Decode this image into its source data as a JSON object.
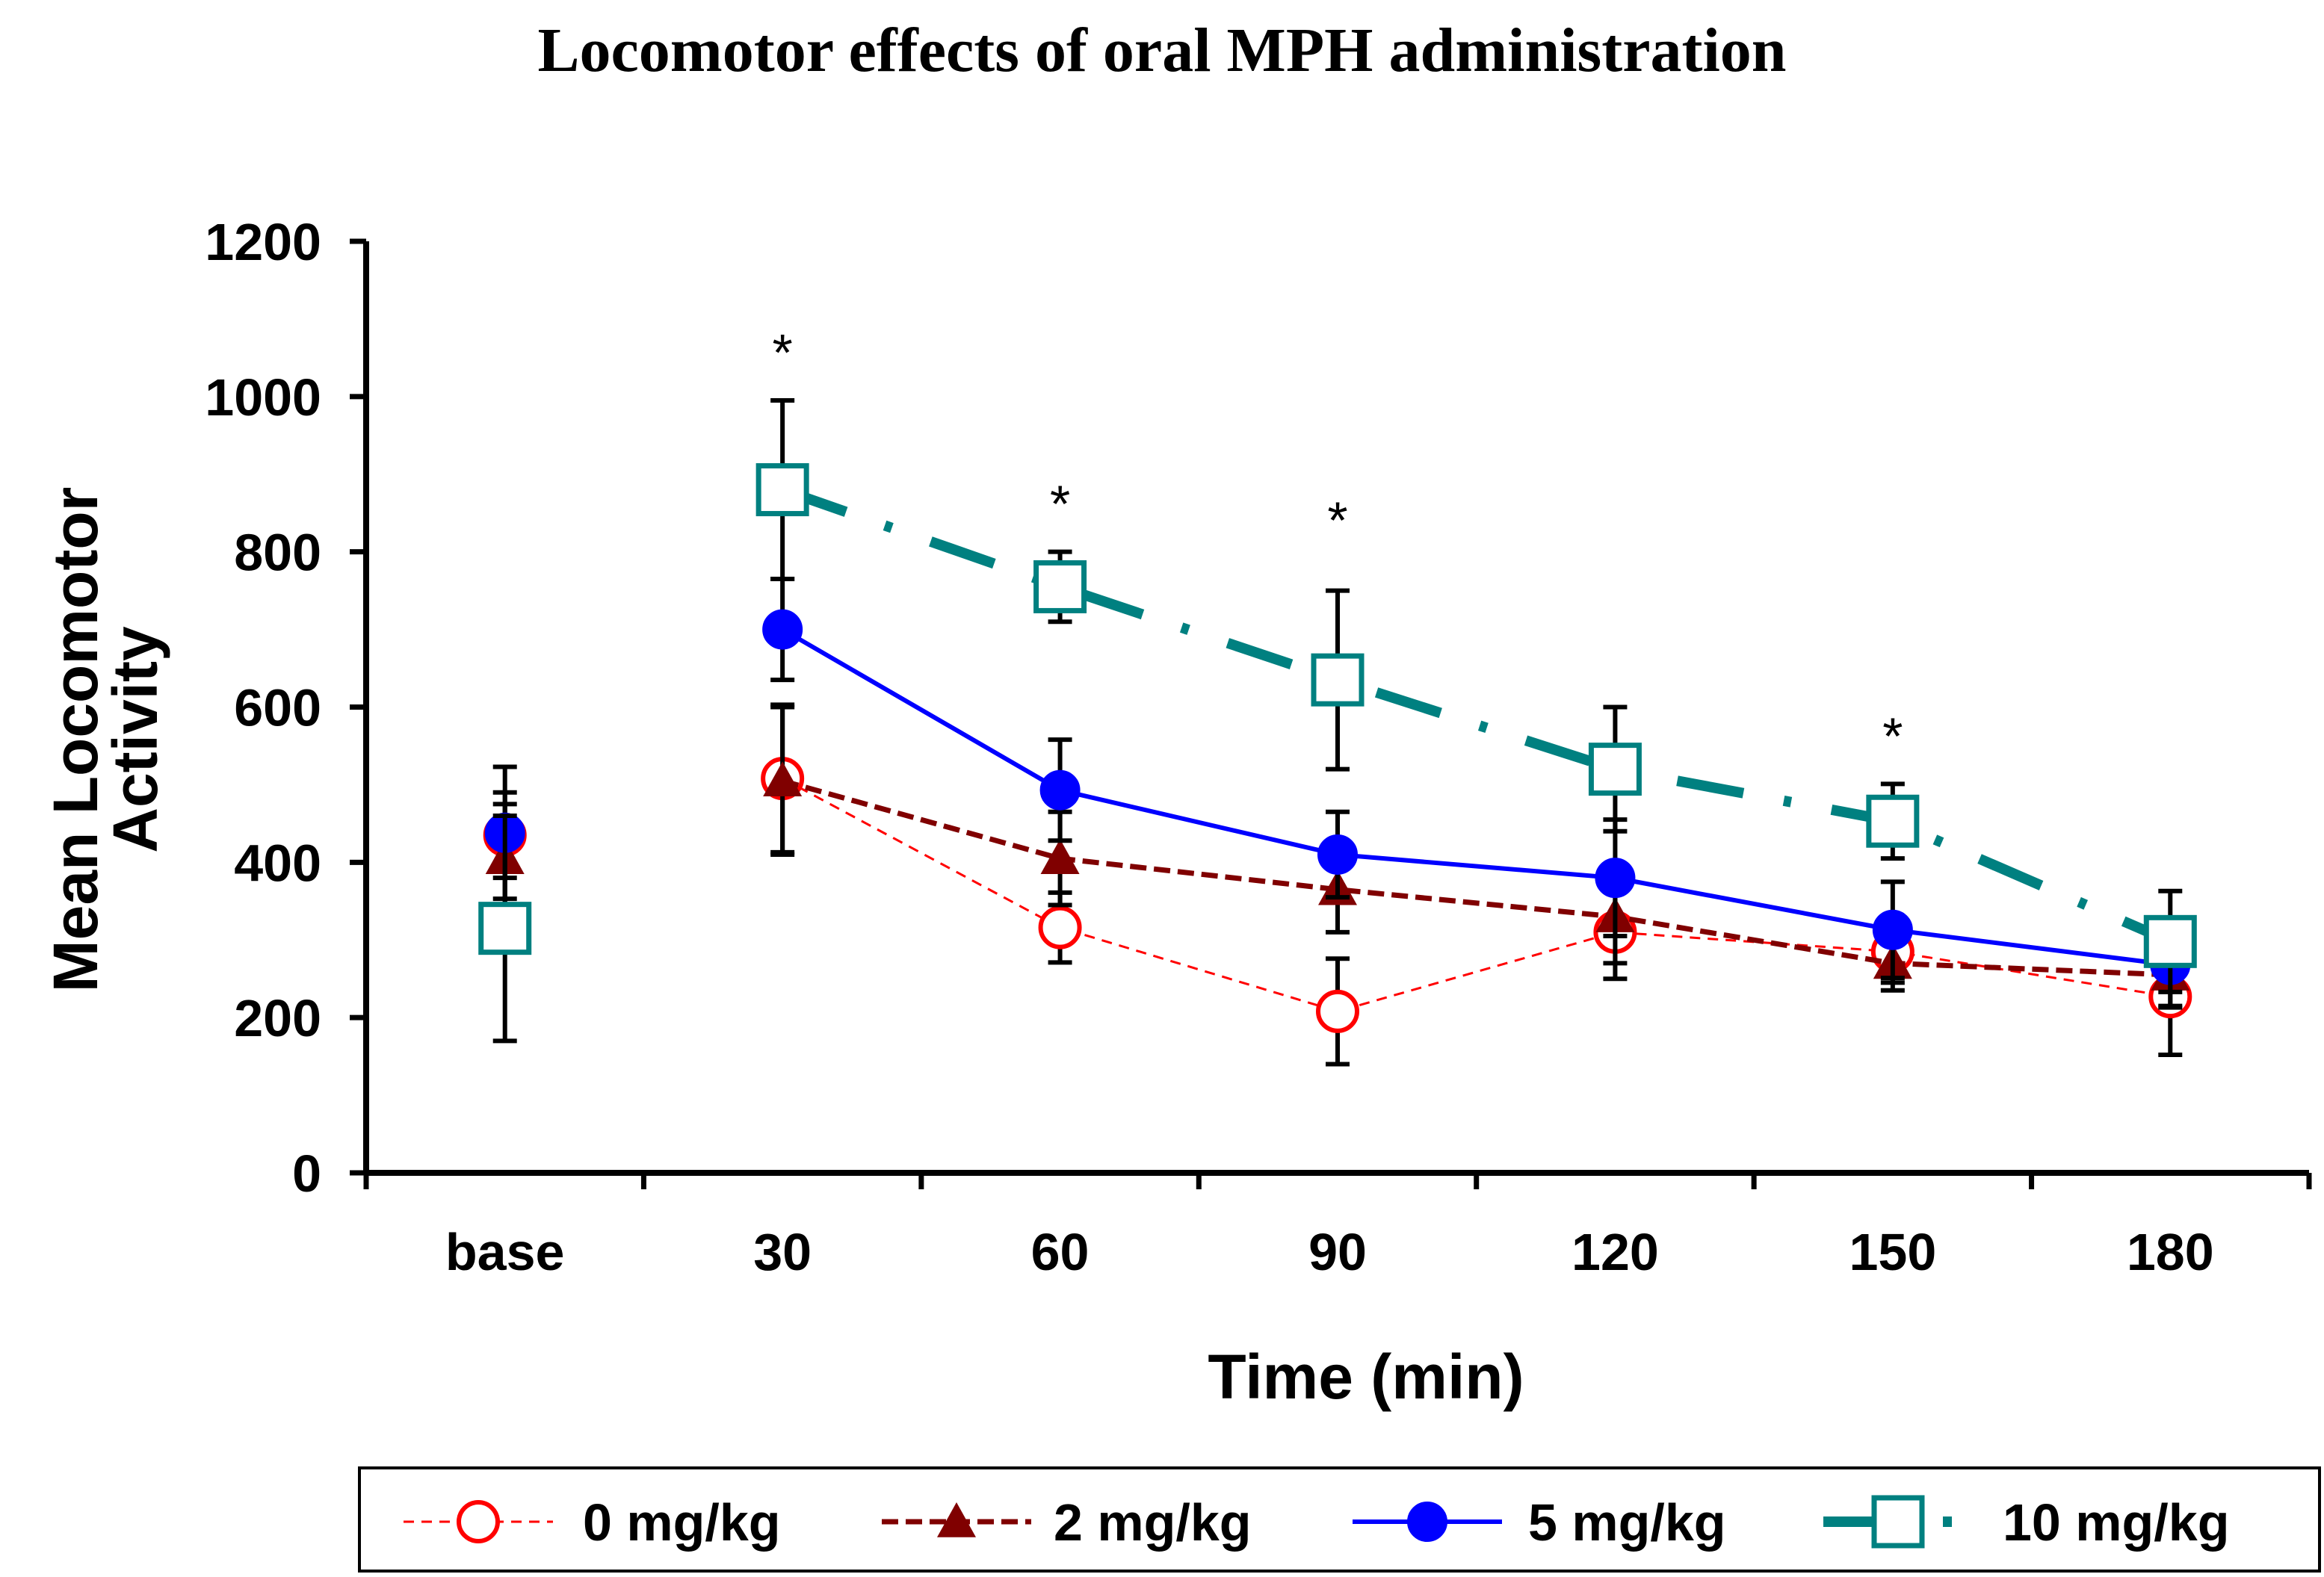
{
  "chart_data": {
    "type": "line",
    "title": "Locomotor effects of oral MPH administration",
    "xlabel": "Time (min)",
    "ylabel": "Mean Locomotor Activity",
    "ylabel_lines": [
      "Mean Locomotor",
      "Activity"
    ],
    "categories": [
      "base",
      "30",
      "60",
      "90",
      "120",
      "150",
      "180"
    ],
    "ylim": [
      0,
      1200
    ],
    "yticks": [
      "0",
      "200",
      "400",
      "600",
      "800",
      "1000",
      "1200"
    ],
    "grid": false,
    "legend_position": "bottom",
    "significance_marker": "*",
    "significant_categories": [
      "30",
      "60",
      "90",
      "150"
    ],
    "series": [
      {
        "name": "0 mg/kg",
        "color": "#ff0000",
        "marker": "open-circle",
        "line_style": "dashed-thin",
        "values": [
          435,
          508,
          316,
          208,
          310,
          285,
          227
        ],
        "errors": [
          55,
          95,
          45,
          68,
          60,
          40,
          75
        ]
      },
      {
        "name": "2 mg/kg",
        "color": "#800000",
        "marker": "filled-triangle",
        "line_style": "dashed",
        "values": [
          405,
          505,
          405,
          365,
          330,
          270,
          255
        ],
        "errors": [
          70,
          95,
          60,
          55,
          60,
          35,
          40
        ]
      },
      {
        "name": "5 mg/kg",
        "color": "#0000ff",
        "marker": "filled-circle",
        "line_style": "solid",
        "values": [
          438,
          700,
          493,
          410,
          380,
          313,
          268
        ],
        "errors": [
          85,
          65,
          65,
          55,
          75,
          62,
          55
        ]
      },
      {
        "name": "10 mg/kg",
        "color": "#008080",
        "marker": "open-square",
        "line_style": "dash-dot-thick",
        "values": [
          315,
          880,
          755,
          635,
          520,
          453,
          298
        ],
        "errors": [
          145,
          115,
          45,
          115,
          80,
          48,
          65
        ]
      }
    ]
  }
}
